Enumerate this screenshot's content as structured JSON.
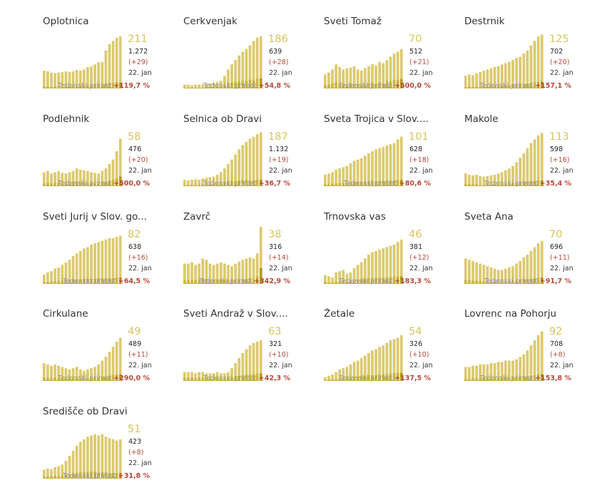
{
  "colors": {
    "bar_light": "#dcc96d",
    "bar_dark": "#b39c16",
    "bar_dark_alt": "#c9b33f",
    "big_number": "#d6c45e",
    "delta": "#b5473a",
    "growth_value": "#b5473a"
  },
  "growth_label": "Tedenski prirast",
  "chart_data": [
    {
      "type": "bar",
      "title": "Oplotnica",
      "current": "211",
      "total": "1.272",
      "delta": "(+29)",
      "date": "22. jan",
      "growth": "+119,7 %",
      "values": [
        28,
        27,
        25,
        24,
        25,
        26,
        27,
        26,
        27,
        29,
        28,
        30,
        34,
        35,
        38,
        41,
        42,
        60,
        70,
        75,
        80,
        82
      ],
      "secondary": [
        3,
        3,
        2,
        3,
        3,
        2,
        3,
        3,
        4,
        3,
        4,
        3,
        5,
        4,
        5,
        6,
        5,
        8,
        9,
        8,
        10,
        9
      ]
    },
    {
      "type": "bar",
      "title": "Cerkvenjak",
      "current": "186",
      "total": "639",
      "delta": "(+28)",
      "date": "22. jan",
      "growth": "+54,8 %",
      "values": [
        6,
        6,
        5,
        6,
        6,
        7,
        7,
        8,
        9,
        10,
        12,
        20,
        30,
        38,
        45,
        52,
        58,
        62,
        68,
        75,
        80,
        82
      ],
      "secondary": [
        1,
        1,
        1,
        1,
        1,
        1,
        2,
        2,
        2,
        3,
        3,
        5,
        8,
        9,
        10,
        11,
        12,
        12,
        14,
        13,
        15,
        16
      ]
    },
    {
      "type": "bar",
      "title": "Sveti Tomaž",
      "current": "70",
      "total": "512",
      "delta": "(+21)",
      "date": "22. jan",
      "growth": "+500,0 %",
      "values": [
        22,
        25,
        30,
        38,
        34,
        30,
        32,
        33,
        35,
        30,
        28,
        32,
        35,
        38,
        36,
        42,
        40,
        45,
        50,
        55,
        58,
        62
      ],
      "secondary": [
        5,
        6,
        8,
        10,
        7,
        6,
        5,
        8,
        6,
        7,
        5,
        6,
        8,
        9,
        7,
        10,
        8,
        12,
        11,
        13,
        14,
        15
      ]
    },
    {
      "type": "bar",
      "title": "Destrnik",
      "current": "125",
      "total": "702",
      "delta": "(+20)",
      "date": "22. jan",
      "growth": "+157,1 %",
      "values": [
        20,
        22,
        21,
        24,
        26,
        28,
        30,
        32,
        34,
        35,
        38,
        40,
        42,
        45,
        48,
        50,
        55,
        60,
        68,
        75,
        82,
        85
      ],
      "secondary": [
        2,
        3,
        2,
        3,
        3,
        4,
        3,
        4,
        4,
        5,
        4,
        5,
        5,
        6,
        6,
        7,
        6,
        8,
        9,
        10,
        10,
        11
      ]
    },
    {
      "type": "bar",
      "title": "Podlehnik",
      "current": "58",
      "total": "476",
      "delta": "(+20)",
      "date": "22. jan",
      "growth": "+500,0 %",
      "values": [
        22,
        24,
        20,
        22,
        24,
        21,
        20,
        22,
        24,
        28,
        26,
        25,
        24,
        22,
        21,
        20,
        24,
        28,
        35,
        42,
        55,
        75
      ],
      "secondary": [
        4,
        5,
        4,
        5,
        6,
        4,
        5,
        5,
        6,
        7,
        6,
        6,
        5,
        5,
        4,
        4,
        6,
        7,
        8,
        10,
        12,
        15
      ]
    },
    {
      "type": "bar",
      "title": "Selnica ob Dravi",
      "current": "187",
      "total": "1.132",
      "delta": "(+19)",
      "date": "22. jan",
      "growth": "+36,7 %",
      "values": [
        10,
        9,
        10,
        11,
        10,
        12,
        13,
        14,
        15,
        18,
        22,
        28,
        35,
        42,
        50,
        58,
        65,
        70,
        75,
        78,
        82,
        85
      ],
      "secondary": [
        2,
        2,
        2,
        2,
        2,
        3,
        3,
        3,
        3,
        4,
        5,
        6,
        7,
        8,
        8,
        9,
        10,
        10,
        9,
        9,
        10,
        10
      ]
    },
    {
      "type": "bar",
      "title": "Sveta Trojica v Slov....",
      "current": "101",
      "total": "628",
      "delta": "(+18)",
      "date": "22. jan",
      "growth": "+80,6 %",
      "values": [
        18,
        20,
        22,
        26,
        28,
        30,
        32,
        36,
        40,
        42,
        44,
        48,
        52,
        55,
        58,
        60,
        62,
        64,
        66,
        68,
        74,
        78
      ],
      "secondary": [
        3,
        3,
        4,
        4,
        5,
        5,
        5,
        6,
        6,
        7,
        6,
        7,
        7,
        8,
        8,
        8,
        8,
        9,
        9,
        9,
        10,
        10
      ]
    },
    {
      "type": "bar",
      "title": "Makole",
      "current": "113",
      "total": "598",
      "delta": "(+16)",
      "date": "22. jan",
      "growth": "+35,4 %",
      "values": [
        20,
        18,
        17,
        18,
        16,
        15,
        16,
        17,
        18,
        20,
        22,
        25,
        28,
        32,
        38,
        45,
        52,
        60,
        68,
        74,
        80,
        84
      ],
      "secondary": [
        3,
        3,
        3,
        3,
        2,
        2,
        3,
        3,
        3,
        3,
        4,
        4,
        4,
        5,
        5,
        6,
        7,
        7,
        8,
        8,
        9,
        9
      ]
    },
    {
      "type": "bar",
      "title": "Sveti Jurij v Slov. go...",
      "current": "82",
      "total": "638",
      "delta": "(+16)",
      "date": "22. jan",
      "growth": "+64,5 %",
      "values": [
        15,
        18,
        20,
        24,
        26,
        30,
        34,
        38,
        44,
        48,
        52,
        56,
        58,
        62,
        64,
        66,
        68,
        70,
        72,
        72,
        74,
        76
      ],
      "secondary": [
        3,
        3,
        4,
        4,
        5,
        5,
        6,
        6,
        7,
        7,
        7,
        8,
        8,
        8,
        8,
        9,
        9,
        9,
        9,
        9,
        10,
        10
      ]
    },
    {
      "type": "bar",
      "title": "Zavrč",
      "current": "38",
      "total": "316",
      "delta": "(+14)",
      "date": "22. jan",
      "growth": "+342,9 %",
      "values": [
        32,
        32,
        34,
        30,
        32,
        40,
        38,
        32,
        30,
        32,
        34,
        32,
        30,
        28,
        32,
        35,
        38,
        40,
        42,
        40,
        48,
        90
      ],
      "secondary": [
        6,
        6,
        7,
        6,
        6,
        9,
        8,
        6,
        6,
        6,
        7,
        6,
        6,
        5,
        6,
        7,
        7,
        8,
        9,
        8,
        12,
        25
      ]
    },
    {
      "type": "bar",
      "title": "Trnovska vas",
      "current": "46",
      "total": "381",
      "delta": "(+12)",
      "date": "22. jan",
      "growth": "+183,3 %",
      "values": [
        14,
        12,
        10,
        18,
        20,
        22,
        16,
        18,
        25,
        30,
        34,
        40,
        46,
        50,
        52,
        54,
        56,
        58,
        60,
        62,
        66,
        70
      ],
      "secondary": [
        3,
        2,
        2,
        4,
        4,
        5,
        3,
        4,
        5,
        6,
        7,
        8,
        9,
        9,
        10,
        10,
        10,
        11,
        11,
        11,
        12,
        12
      ]
    },
    {
      "type": "bar",
      "title": "Sveta Ana",
      "current": "70",
      "total": "696",
      "delta": "(+11)",
      "date": "22. jan",
      "growth": "+91,7 %",
      "values": [
        40,
        38,
        36,
        34,
        32,
        30,
        28,
        26,
        24,
        22,
        22,
        24,
        26,
        28,
        32,
        36,
        42,
        46,
        52,
        58,
        64,
        68
      ],
      "secondary": [
        6,
        6,
        5,
        5,
        5,
        4,
        4,
        4,
        4,
        4,
        4,
        4,
        5,
        5,
        5,
        6,
        7,
        7,
        8,
        9,
        10,
        10
      ]
    },
    {
      "type": "bar",
      "title": "Cirkulane",
      "current": "49",
      "total": "489",
      "delta": "(+11)",
      "date": "22. jan",
      "growth": "+290,0 %",
      "values": [
        28,
        26,
        24,
        26,
        24,
        22,
        20,
        18,
        20,
        22,
        18,
        16,
        18,
        20,
        22,
        26,
        32,
        38,
        46,
        54,
        62,
        68
      ],
      "secondary": [
        5,
        5,
        4,
        5,
        4,
        4,
        4,
        3,
        4,
        4,
        3,
        3,
        4,
        4,
        4,
        5,
        6,
        7,
        8,
        9,
        10,
        10
      ]
    },
    {
      "type": "bar",
      "title": "Sveti Andraž v Slov....",
      "current": "63",
      "total": "321",
      "delta": "(+10)",
      "date": "22. jan",
      "growth": "+42,3 %",
      "values": [
        14,
        14,
        14,
        12,
        14,
        14,
        12,
        12,
        12,
        14,
        12,
        12,
        14,
        20,
        28,
        36,
        44,
        50,
        56,
        60,
        62,
        64
      ],
      "secondary": [
        5,
        5,
        5,
        4,
        5,
        5,
        4,
        4,
        4,
        5,
        4,
        4,
        5,
        6,
        7,
        8,
        9,
        10,
        10,
        11,
        11,
        12
      ]
    },
    {
      "type": "bar",
      "title": "Žetale",
      "current": "54",
      "total": "326",
      "delta": "(+10)",
      "date": "22. jan",
      "growth": "+137,5 %",
      "values": [
        6,
        8,
        10,
        14,
        18,
        20,
        22,
        26,
        30,
        32,
        36,
        40,
        44,
        48,
        50,
        54,
        56,
        60,
        64,
        66,
        68,
        72
      ],
      "secondary": [
        1,
        2,
        2,
        3,
        4,
        4,
        5,
        5,
        6,
        7,
        7,
        8,
        9,
        9,
        10,
        10,
        11,
        11,
        12,
        12,
        13,
        13
      ]
    },
    {
      "type": "bar",
      "title": "Lovrenc na Pohorju",
      "current": "92",
      "total": "708",
      "delta": "(+8)",
      "date": "22. jan",
      "growth": "+153,8 %",
      "values": [
        22,
        22,
        24,
        24,
        26,
        26,
        26,
        28,
        28,
        30,
        30,
        32,
        32,
        32,
        34,
        38,
        42,
        48,
        56,
        64,
        72,
        78
      ],
      "secondary": [
        3,
        3,
        4,
        4,
        4,
        4,
        4,
        4,
        4,
        5,
        5,
        5,
        5,
        5,
        5,
        6,
        7,
        7,
        8,
        9,
        10,
        11
      ]
    },
    {
      "type": "bar",
      "title": "Središče ob Dravi",
      "current": "51",
      "total": "423",
      "delta": "(+8)",
      "date": "22. jan",
      "growth": "+31,8 %",
      "values": [
        14,
        16,
        15,
        18,
        20,
        22,
        28,
        36,
        44,
        52,
        58,
        62,
        66,
        68,
        70,
        68,
        70,
        66,
        64,
        62,
        60,
        62
      ],
      "secondary": [
        3,
        3,
        3,
        4,
        4,
        5,
        6,
        7,
        8,
        9,
        10,
        10,
        10,
        11,
        11,
        10,
        10,
        10,
        9,
        9,
        9,
        9
      ]
    }
  ]
}
